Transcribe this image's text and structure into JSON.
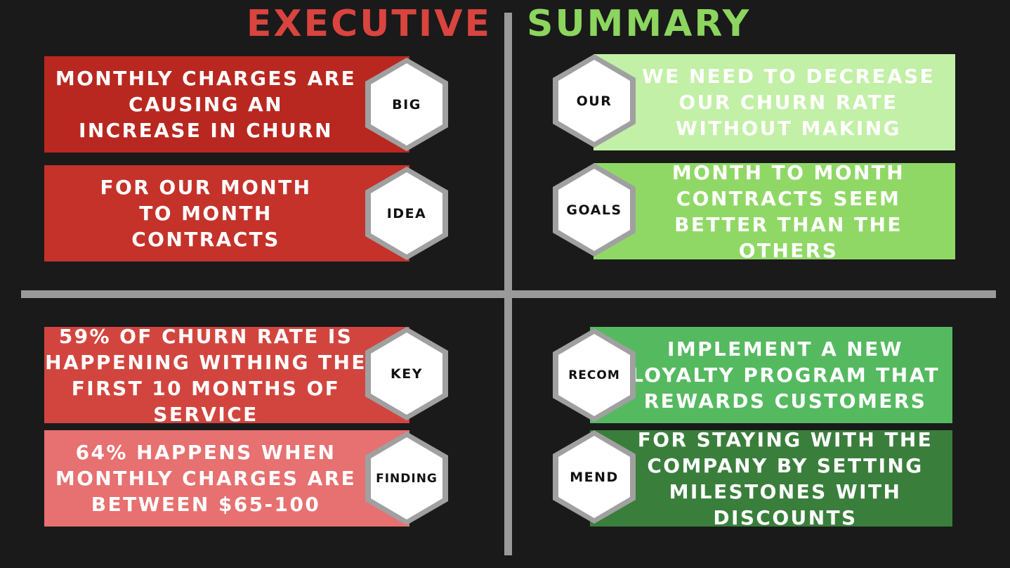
{
  "header": {
    "title_left": "EXECUTIVE",
    "title_right": "SUMMARY",
    "title_left_color": "#d9443f",
    "title_right_color": "#8cd55e"
  },
  "quadrants": {
    "top_left": [
      {
        "hex_label": "BIG",
        "text": "MONTHLY CHARGES ARE\nCAUSING AN\nINCREASE IN CHURN",
        "color": "#b82820"
      },
      {
        "hex_label": "IDEA",
        "text": "FOR OUR MONTH\nTO MONTH\nCONTRACTS",
        "color": "#c4322a"
      }
    ],
    "top_right": [
      {
        "hex_label": "OUR",
        "text": "WE NEED TO DECREASE\nOUR CHURN RATE\nWITHOUT MAKING",
        "color": "#c2f0a6"
      },
      {
        "hex_label": "GOALS",
        "text": "MONTH TO MONTH\nCONTRACTS SEEM\nBETTER THAN THE\nOTHERS",
        "color": "#90d866"
      }
    ],
    "bottom_left": [
      {
        "hex_label": "KEY",
        "text": "59% OF CHURN RATE IS\nHAPPENING WITHING THE\nFIRST 10 MONTHS OF\nSERVICE",
        "color": "#d2453f"
      },
      {
        "hex_label": "FINDING",
        "text": "64% HAPPENS WHEN\nMONTHLY CHARGES ARE\nBETWEEN $65-100",
        "color": "#e77070"
      }
    ],
    "bottom_right": [
      {
        "hex_label": "RECOM",
        "text": "IMPLEMENT A NEW\nLOYALTY PROGRAM THAT\nREWARDS CUSTOMERS",
        "color": "#55b960"
      },
      {
        "hex_label": "MEND",
        "text": "FOR STAYING WITH THE\nCOMPANY BY SETTING\nMILESTONES WITH\nDISCOUNTS",
        "color": "#3a7e3c"
      }
    ]
  },
  "colors": {
    "background": "#1a1a1a",
    "divider": "#9a9a9a",
    "hex_fill": "#ffffff",
    "hex_shadow": "#a0a0a0"
  }
}
